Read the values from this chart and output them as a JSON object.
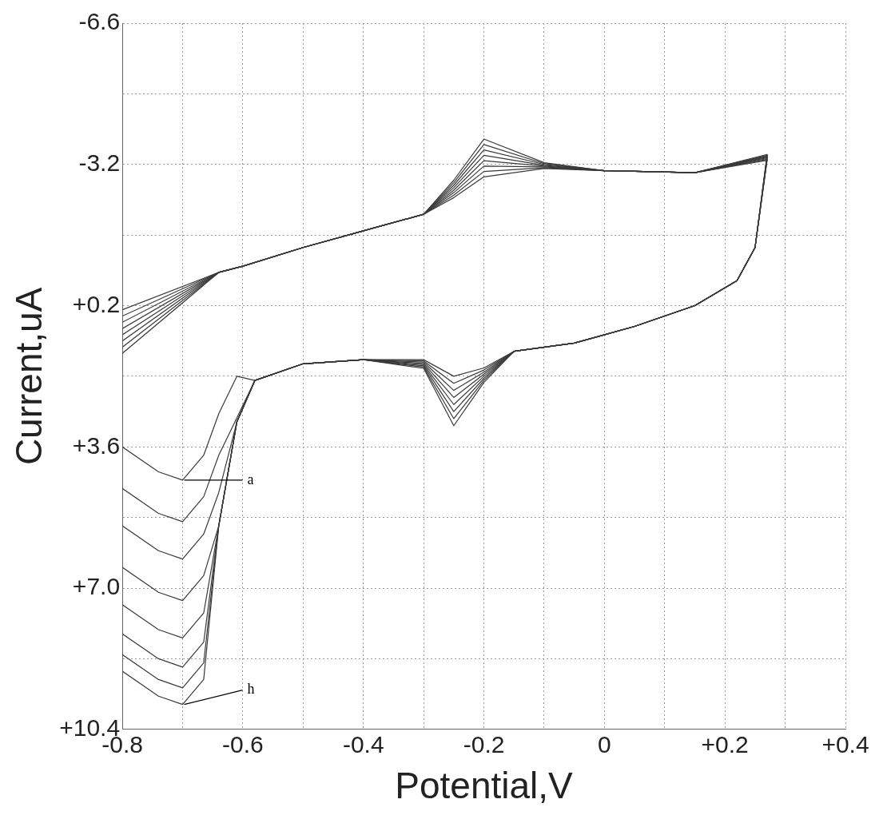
{
  "chart_data": {
    "type": "line",
    "xlabel": "Potential,V",
    "ylabel": "Current,uA",
    "series": [
      {
        "color": "#3a3a3a",
        "x": [
          -0.8,
          -0.64,
          -0.6,
          -0.5,
          -0.4,
          -0.3,
          -0.25,
          -0.2,
          -0.1,
          0.0,
          0.15,
          0.27
        ],
        "values": [
          0.3,
          -0.6,
          -0.75,
          -1.2,
          -1.6,
          -2.0,
          -2.4,
          -2.9,
          -3.1,
          -3.05,
          -3.0,
          -3.3
        ]
      },
      {
        "color": "#3a3a3a",
        "x": [
          -0.8,
          -0.74,
          -0.7,
          -0.665,
          -0.64,
          -0.61,
          -0.58,
          -0.5,
          -0.4,
          -0.3,
          -0.25,
          -0.2,
          -0.15,
          -0.05,
          0.05,
          0.15,
          0.22,
          0.25,
          0.27
        ],
        "values": [
          3.6,
          4.2,
          4.4,
          3.8,
          2.8,
          1.9,
          2.0,
          1.6,
          1.5,
          1.5,
          1.9,
          1.7,
          1.3,
          1.1,
          0.7,
          0.2,
          -0.4,
          -1.2,
          -3.3
        ]
      },
      {
        "color": "#3a3a3a",
        "x": [
          -0.8,
          -0.64,
          -0.6,
          -0.5,
          -0.4,
          -0.3,
          -0.25,
          -0.2,
          -0.1,
          0.0,
          0.15,
          0.27
        ],
        "values": [
          0.45,
          -0.6,
          -0.75,
          -1.2,
          -1.6,
          -2.0,
          -2.46,
          -3.03,
          -3.12,
          -3.05,
          -3.0,
          -3.32
        ]
      },
      {
        "color": "#3a3a3a",
        "x": [
          -0.8,
          -0.74,
          -0.7,
          -0.665,
          -0.64,
          -0.61,
          -0.58,
          -0.5,
          -0.4,
          -0.3,
          -0.25,
          -0.2,
          -0.15,
          -0.05,
          0.05,
          0.15,
          0.22,
          0.25,
          0.27
        ],
        "values": [
          4.6,
          5.2,
          5.4,
          4.8,
          3.8,
          2.9,
          2.0,
          1.6,
          1.5,
          1.53,
          2.07,
          1.75,
          1.3,
          1.1,
          0.7,
          0.2,
          -0.4,
          -1.2,
          -3.32
        ]
      },
      {
        "color": "#3a3a3a",
        "x": [
          -0.8,
          -0.64,
          -0.6,
          -0.5,
          -0.4,
          -0.3,
          -0.25,
          -0.2,
          -0.1,
          0.0,
          0.15,
          0.27
        ],
        "values": [
          0.6,
          -0.6,
          -0.75,
          -1.2,
          -1.6,
          -2.0,
          -2.52,
          -3.16,
          -3.14,
          -3.05,
          -3.0,
          -3.34
        ]
      },
      {
        "color": "#3a3a3a",
        "x": [
          -0.8,
          -0.74,
          -0.7,
          -0.665,
          -0.64,
          -0.61,
          -0.58,
          -0.5,
          -0.4,
          -0.3,
          -0.25,
          -0.2,
          -0.15,
          -0.05,
          0.05,
          0.15,
          0.22,
          0.25,
          0.27
        ],
        "values": [
          5.5,
          6.1,
          6.3,
          5.7,
          4.7,
          3.0,
          2.0,
          1.6,
          1.5,
          1.56,
          2.24,
          1.8,
          1.3,
          1.1,
          0.7,
          0.2,
          -0.4,
          -1.2,
          -3.34
        ]
      },
      {
        "color": "#3a3a3a",
        "x": [
          -0.8,
          -0.64,
          -0.6,
          -0.5,
          -0.4,
          -0.3,
          -0.25,
          -0.2,
          -0.1,
          0.0,
          0.15,
          0.27
        ],
        "values": [
          0.75,
          -0.6,
          -0.75,
          -1.2,
          -1.6,
          -2.0,
          -2.58,
          -3.29,
          -3.16,
          -3.05,
          -3.0,
          -3.36
        ]
      },
      {
        "color": "#3a3a3a",
        "x": [
          -0.8,
          -0.74,
          -0.7,
          -0.665,
          -0.64,
          -0.61,
          -0.58,
          -0.5,
          -0.4,
          -0.3,
          -0.25,
          -0.2,
          -0.15,
          -0.05,
          0.05,
          0.15,
          0.22,
          0.25,
          0.27
        ],
        "values": [
          6.5,
          7.1,
          7.3,
          6.7,
          5.5,
          3.0,
          2.0,
          1.6,
          1.5,
          1.59,
          2.41,
          1.85,
          1.3,
          1.1,
          0.7,
          0.2,
          -0.4,
          -1.2,
          -3.36
        ]
      },
      {
        "color": "#3a3a3a",
        "x": [
          -0.8,
          -0.64,
          -0.6,
          -0.5,
          -0.4,
          -0.3,
          -0.25,
          -0.2,
          -0.1,
          0.0,
          0.15,
          0.27
        ],
        "values": [
          0.9,
          -0.6,
          -0.75,
          -1.2,
          -1.6,
          -2.0,
          -2.64,
          -3.42,
          -3.18,
          -3.05,
          -3.0,
          -3.38
        ]
      },
      {
        "color": "#3a3a3a",
        "x": [
          -0.8,
          -0.74,
          -0.7,
          -0.665,
          -0.64,
          -0.61,
          -0.58,
          -0.5,
          -0.4,
          -0.3,
          -0.25,
          -0.2,
          -0.15,
          -0.05,
          0.05,
          0.15,
          0.22,
          0.25,
          0.27
        ],
        "values": [
          7.4,
          8.0,
          8.2,
          7.6,
          5.5,
          3.0,
          2.0,
          1.6,
          1.5,
          1.62,
          2.58,
          1.9,
          1.3,
          1.1,
          0.7,
          0.2,
          -0.4,
          -1.2,
          -3.38
        ]
      },
      {
        "color": "#3a3a3a",
        "x": [
          -0.8,
          -0.64,
          -0.6,
          -0.5,
          -0.4,
          -0.3,
          -0.25,
          -0.2,
          -0.1,
          0.0,
          0.15,
          0.27
        ],
        "values": [
          1.05,
          -0.6,
          -0.75,
          -1.2,
          -1.6,
          -2.0,
          -2.7,
          -3.55,
          -3.2,
          -3.05,
          -3.0,
          -3.4
        ]
      },
      {
        "color": "#3a3a3a",
        "x": [
          -0.8,
          -0.74,
          -0.7,
          -0.665,
          -0.64,
          -0.61,
          -0.58,
          -0.5,
          -0.4,
          -0.3,
          -0.25,
          -0.2,
          -0.15,
          -0.05,
          0.05,
          0.15,
          0.22,
          0.25,
          0.27
        ],
        "values": [
          8.1,
          8.7,
          8.9,
          8.3,
          5.5,
          3.0,
          2.0,
          1.6,
          1.5,
          1.65,
          2.75,
          1.95,
          1.3,
          1.1,
          0.7,
          0.2,
          -0.4,
          -1.2,
          -3.4
        ]
      },
      {
        "color": "#3a3a3a",
        "x": [
          -0.8,
          -0.64,
          -0.6,
          -0.5,
          -0.4,
          -0.3,
          -0.25,
          -0.2,
          -0.1,
          0.0,
          0.15,
          0.27
        ],
        "values": [
          1.2,
          -0.6,
          -0.75,
          -1.2,
          -1.6,
          -2.0,
          -2.76,
          -3.68,
          -3.22,
          -3.05,
          -3.0,
          -3.42
        ]
      },
      {
        "color": "#3a3a3a",
        "x": [
          -0.8,
          -0.74,
          -0.7,
          -0.665,
          -0.64,
          -0.61,
          -0.58,
          -0.5,
          -0.4,
          -0.3,
          -0.25,
          -0.2,
          -0.15,
          -0.05,
          0.05,
          0.15,
          0.22,
          0.25,
          0.27
        ],
        "values": [
          8.6,
          9.2,
          9.4,
          8.8,
          5.5,
          3.0,
          2.0,
          1.6,
          1.5,
          1.68,
          2.92,
          2.0,
          1.3,
          1.1,
          0.7,
          0.2,
          -0.4,
          -1.2,
          -3.42
        ]
      },
      {
        "color": "#3a3a3a",
        "x": [
          -0.8,
          -0.64,
          -0.6,
          -0.5,
          -0.4,
          -0.3,
          -0.25,
          -0.2,
          -0.1,
          0.0,
          0.15,
          0.27
        ],
        "values": [
          1.35,
          -0.6,
          -0.75,
          -1.2,
          -1.6,
          -2.0,
          -2.82,
          -3.81,
          -3.24,
          -3.05,
          -3.0,
          -3.44
        ]
      },
      {
        "color": "#3a3a3a",
        "x": [
          -0.8,
          -0.74,
          -0.7,
          -0.665,
          -0.64,
          -0.61,
          -0.58,
          -0.5,
          -0.4,
          -0.3,
          -0.25,
          -0.2,
          -0.15,
          -0.05,
          0.05,
          0.15,
          0.22,
          0.25,
          0.27
        ],
        "values": [
          9.0,
          9.6,
          9.8,
          9.2,
          5.5,
          3.0,
          2.0,
          1.6,
          1.5,
          1.71,
          3.09,
          2.05,
          1.3,
          1.1,
          0.7,
          0.2,
          -0.4,
          -1.2,
          -3.44
        ]
      }
    ],
    "xlim": [
      -0.8,
      0.4
    ],
    "xticks": [
      -0.8,
      {
        "value": -0.7,
        "label": null
      },
      -0.6,
      {
        "value": -0.5,
        "label": null
      },
      -0.4,
      {
        "value": -0.3,
        "label": null
      },
      -0.2,
      {
        "value": -0.1,
        "label": null
      },
      0,
      {
        "value": 0.1,
        "label": null
      },
      {
        "value": 0.2,
        "label": "+0.2"
      },
      {
        "value": 0.3,
        "label": null
      },
      {
        "value": 0.4,
        "label": "+0.4"
      }
    ],
    "ylim": [
      10.4,
      -6.6
    ],
    "yticks": [
      -6.6,
      {
        "value": -4.9,
        "label": null
      },
      -3.2,
      {
        "value": -1.5,
        "label": null
      },
      {
        "value": 0.2,
        "label": "+0.2"
      },
      {
        "value": 1.9,
        "label": null
      },
      {
        "value": 3.6,
        "label": "+3.6"
      },
      {
        "value": 5.3,
        "label": null
      },
      {
        "value": 7.0,
        "label": "+7.0"
      },
      {
        "value": 8.7,
        "label": null
      },
      {
        "value": 10.4,
        "label": "+10.4"
      }
    ],
    "grid": true,
    "legend": false,
    "marker": "none",
    "line_style": "solid",
    "annotations": [
      {
        "text": "a",
        "x": -0.7,
        "y": 4.4
      },
      {
        "text": "h",
        "x": -0.7,
        "y": 9.8
      }
    ]
  }
}
